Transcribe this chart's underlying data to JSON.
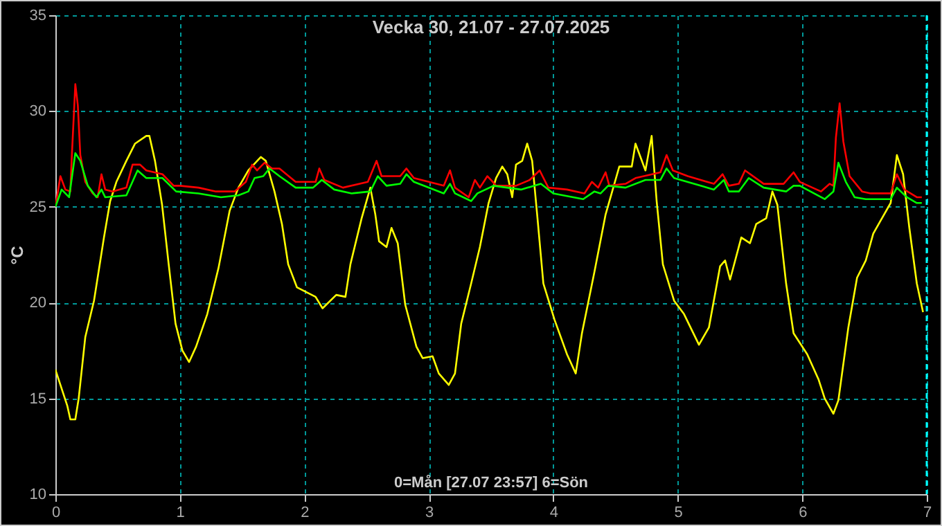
{
  "chart_data": {
    "type": "line",
    "title": "Vecka 30, 21.07 - 27.07.2025",
    "ylabel": "°C",
    "annotations": [
      "0=Mån [27.07 23:57] 6=Sön"
    ],
    "xlim": [
      0,
      7
    ],
    "xticks": [
      0,
      1,
      2,
      3,
      4,
      5,
      6,
      7
    ],
    "ylim": [
      10,
      35
    ],
    "yticks": [
      10,
      15,
      20,
      25,
      30,
      35
    ],
    "grid": true,
    "marker": "none",
    "line_style": "solid",
    "ref_lines": [
      {
        "axis": "x",
        "value": 7,
        "color": "#00ffff",
        "line_style": "dashed"
      }
    ],
    "series": [
      {
        "color": "#ffff00",
        "x": [
          0,
          0.096,
          0.12,
          0.16,
          0.187,
          0.24,
          0.31,
          0.39,
          0.44,
          0.49,
          0.57,
          0.64,
          0.73,
          0.755,
          0.8,
          0.857,
          0.91,
          0.965,
          1.02,
          1.074,
          1.13,
          1.22,
          1.31,
          1.4,
          1.47,
          1.55,
          1.65,
          1.69,
          1.76,
          1.82,
          1.87,
          1.94,
          2.0,
          2.09,
          2.146,
          2.256,
          2.33,
          2.37,
          2.46,
          2.53,
          2.57,
          2.6,
          2.66,
          2.7,
          2.75,
          2.81,
          2.9,
          2.95,
          3.03,
          3.08,
          3.16,
          3.21,
          3.26,
          3.34,
          3.41,
          3.48,
          3.54,
          3.59,
          3.63,
          3.67,
          3.7,
          3.75,
          3.79,
          3.83,
          3.87,
          3.92,
          4.01,
          4.11,
          4.18,
          4.23,
          4.33,
          4.42,
          4.53,
          4.63,
          4.66,
          4.74,
          4.79,
          4.83,
          4.88,
          4.97,
          5.05,
          5.17,
          5.25,
          5.34,
          5.38,
          5.42,
          5.51,
          5.58,
          5.63,
          5.71,
          5.76,
          5.8,
          5.87,
          5.93,
          6.04,
          6.13,
          6.18,
          6.25,
          6.29,
          6.37,
          6.44,
          6.51,
          6.57,
          6.64,
          6.71,
          6.76,
          6.81,
          6.86,
          6.92,
          6.97
        ],
        "values": [
          16.5,
          14.6,
          13.9,
          13.9,
          15.0,
          18.2,
          20.1,
          23.4,
          25.3,
          26.3,
          27.4,
          28.3,
          28.7,
          28.7,
          27.4,
          25.1,
          22.0,
          18.9,
          17.5,
          16.9,
          17.7,
          19.4,
          21.8,
          24.8,
          26.0,
          26.9,
          27.6,
          27.4,
          25.8,
          24.1,
          22.0,
          20.8,
          20.6,
          20.3,
          19.7,
          20.4,
          20.3,
          22.0,
          24.4,
          26.0,
          24.6,
          23.2,
          22.9,
          23.9,
          23.1,
          19.9,
          17.7,
          17.1,
          17.2,
          16.3,
          15.7,
          16.3,
          18.9,
          21.0,
          22.9,
          25.2,
          26.5,
          27.1,
          26.7,
          25.5,
          27.2,
          27.4,
          28.3,
          27.4,
          24.6,
          21.0,
          19.1,
          17.3,
          16.3,
          18.4,
          21.6,
          24.6,
          27.1,
          27.1,
          28.3,
          26.9,
          28.7,
          25.3,
          22.0,
          20.1,
          19.4,
          17.8,
          18.7,
          21.9,
          22.2,
          21.2,
          23.4,
          23.1,
          24.1,
          24.4,
          25.8,
          25.1,
          21.0,
          18.4,
          17.3,
          16.0,
          15.0,
          14.2,
          14.9,
          18.7,
          21.3,
          22.2,
          23.6,
          24.4,
          25.2,
          27.7,
          26.7,
          23.9,
          21.0,
          19.5
        ]
      },
      {
        "color": "#ff0000",
        "x": [
          0,
          0.04,
          0.08,
          0.12,
          0.13,
          0.16,
          0.18,
          0.2,
          0.24,
          0.3,
          0.34,
          0.37,
          0.4,
          0.46,
          0.57,
          0.62,
          0.68,
          0.73,
          0.86,
          0.95,
          1.0,
          1.15,
          1.29,
          1.44,
          1.53,
          1.58,
          1.62,
          1.68,
          1.74,
          1.8,
          1.93,
          2.09,
          2.12,
          2.16,
          2.31,
          2.51,
          2.58,
          2.62,
          2.77,
          2.82,
          2.88,
          3.12,
          3.17,
          3.21,
          3.32,
          3.37,
          3.41,
          3.47,
          3.5,
          3.54,
          3.7,
          3.81,
          3.89,
          3.96,
          4.11,
          4.25,
          4.31,
          4.36,
          4.42,
          4.45,
          4.58,
          4.66,
          4.86,
          4.91,
          4.96,
          5.08,
          5.29,
          5.36,
          5.41,
          5.49,
          5.54,
          5.69,
          5.85,
          5.93,
          5.98,
          6.15,
          6.22,
          6.25,
          6.27,
          6.3,
          6.33,
          6.38,
          6.48,
          6.55,
          6.71,
          6.76,
          6.82,
          6.92,
          6.96
        ],
        "values": [
          25.0,
          26.6,
          25.9,
          25.8,
          27.4,
          31.4,
          30.3,
          27.7,
          26.3,
          25.7,
          25.5,
          26.7,
          25.9,
          25.8,
          26.0,
          27.2,
          27.2,
          26.9,
          26.7,
          26.1,
          26.1,
          26.0,
          25.8,
          25.8,
          26.3,
          27.2,
          26.9,
          27.3,
          27.0,
          27.0,
          26.3,
          26.3,
          27.0,
          26.4,
          26.0,
          26.3,
          27.4,
          26.6,
          26.6,
          27.0,
          26.5,
          26.1,
          26.9,
          26.0,
          25.5,
          26.4,
          26.0,
          26.6,
          26.4,
          26.1,
          26.1,
          26.4,
          26.9,
          26.0,
          25.9,
          25.7,
          26.3,
          26.0,
          26.8,
          26.1,
          26.2,
          26.5,
          26.8,
          27.7,
          26.9,
          26.6,
          26.2,
          26.7,
          26.1,
          26.2,
          26.9,
          26.2,
          26.2,
          26.8,
          26.3,
          25.8,
          26.2,
          26.1,
          28.6,
          30.4,
          28.4,
          26.6,
          25.8,
          25.7,
          25.7,
          26.7,
          25.9,
          25.5,
          25.5
        ]
      },
      {
        "color": "#00ff00",
        "x": [
          0,
          0.05,
          0.11,
          0.16,
          0.2,
          0.26,
          0.33,
          0.37,
          0.4,
          0.57,
          0.66,
          0.73,
          0.86,
          0.97,
          1.15,
          1.33,
          1.47,
          1.55,
          1.6,
          1.67,
          1.72,
          1.8,
          1.93,
          2.07,
          2.14,
          2.24,
          2.38,
          2.53,
          2.59,
          2.66,
          2.77,
          2.82,
          2.88,
          3.12,
          3.17,
          3.21,
          3.34,
          3.39,
          3.52,
          3.74,
          3.9,
          4.0,
          4.24,
          4.33,
          4.38,
          4.44,
          4.58,
          4.74,
          4.86,
          4.91,
          4.97,
          5.29,
          5.37,
          5.41,
          5.49,
          5.57,
          5.69,
          5.87,
          5.93,
          5.98,
          6.18,
          6.25,
          6.29,
          6.35,
          6.42,
          6.51,
          6.71,
          6.76,
          6.84,
          6.92,
          6.96
        ],
        "values": [
          25.0,
          25.9,
          25.5,
          27.8,
          27.4,
          26.1,
          25.5,
          25.9,
          25.5,
          25.6,
          26.9,
          26.5,
          26.5,
          25.8,
          25.7,
          25.5,
          25.6,
          25.8,
          26.5,
          26.6,
          27.0,
          26.6,
          26.0,
          26.0,
          26.4,
          25.9,
          25.7,
          25.8,
          26.6,
          26.1,
          26.2,
          26.7,
          26.3,
          25.7,
          26.2,
          25.7,
          25.3,
          25.7,
          26.1,
          25.9,
          26.2,
          25.7,
          25.4,
          25.8,
          25.7,
          26.1,
          26.0,
          26.4,
          26.4,
          27.0,
          26.5,
          25.9,
          26.4,
          25.8,
          25.8,
          26.5,
          26.0,
          25.8,
          26.1,
          26.1,
          25.4,
          25.8,
          27.3,
          26.3,
          25.5,
          25.4,
          25.4,
          26.0,
          25.5,
          25.2,
          25.2
        ]
      }
    ]
  }
}
